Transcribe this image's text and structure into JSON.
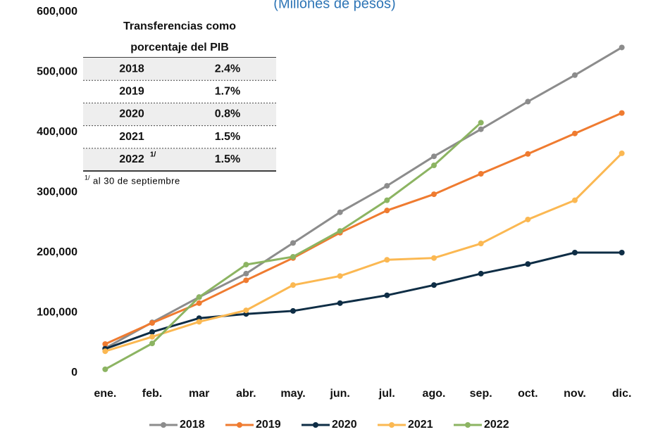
{
  "chart_data": {
    "type": "line",
    "subtitle": "(Millones de pesos)",
    "categories": [
      "ene.",
      "feb.",
      "mar",
      "abr.",
      "may.",
      "jun.",
      "jul.",
      "ago.",
      "sep.",
      "oct.",
      "nov.",
      "dic."
    ],
    "series": [
      {
        "name": "2018",
        "color": "#8c8c8c",
        "values": [
          41000,
          84000,
          126000,
          165000,
          216000,
          267000,
          311000,
          360000,
          405000,
          451000,
          495000,
          541000
        ]
      },
      {
        "name": "2019",
        "color": "#ef7b30",
        "values": [
          48000,
          83000,
          116000,
          154000,
          191000,
          233000,
          270000,
          297000,
          331000,
          364000,
          398000,
          432000
        ]
      },
      {
        "name": "2020",
        "color": "#0e2d45",
        "values": [
          40000,
          68000,
          91000,
          98000,
          103000,
          116000,
          129000,
          146000,
          165000,
          181000,
          200000,
          200000
        ]
      },
      {
        "name": "2021",
        "color": "#fbb852",
        "values": [
          36000,
          60000,
          85000,
          104000,
          146000,
          161000,
          188000,
          191000,
          215000,
          255000,
          287000,
          365000
        ]
      },
      {
        "name": "2022",
        "color": "#8cb462",
        "values": [
          6000,
          49000,
          126000,
          180000,
          193000,
          236000,
          287000,
          345000,
          416000,
          null,
          null,
          null
        ]
      }
    ],
    "ylim": [
      0,
      600000
    ],
    "yticks": [
      0,
      {
        "value": 100000,
        "label": "100,000"
      },
      {
        "value": 200000,
        "label": "200,000"
      },
      {
        "value": 300000,
        "label": "300,000"
      },
      {
        "value": 400000,
        "label": "400,000"
      },
      {
        "value": 500000,
        "label": "500,000"
      },
      {
        "value": 600000,
        "label": "600,000"
      }
    ],
    "legend": "bottom"
  },
  "table": {
    "title_lines": [
      "Transferencias como",
      "porcentaje del PIB"
    ],
    "rows": [
      {
        "year": "2018",
        "value": "2.4%"
      },
      {
        "year": "2019",
        "value": "1.7%"
      },
      {
        "year": "2020",
        "value": "0.8%"
      },
      {
        "year": "2021",
        "value": "1.5%"
      },
      {
        "year": "2022",
        "note": "1/",
        "value": "1.5%"
      }
    ],
    "footnote": {
      "mark": "1/",
      "text": "al 30 de septiembre"
    }
  }
}
